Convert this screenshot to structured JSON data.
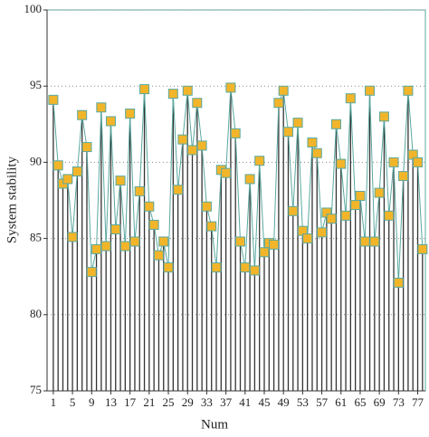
{
  "chart_data": {
    "type": "stem",
    "x_label": "Num",
    "y_label": "System stability",
    "x": [
      1,
      2,
      3,
      4,
      5,
      6,
      7,
      8,
      9,
      10,
      11,
      12,
      13,
      14,
      15,
      16,
      17,
      18,
      19,
      20,
      21,
      22,
      23,
      24,
      25,
      26,
      27,
      28,
      29,
      30,
      31,
      32,
      33,
      34,
      35,
      36,
      37,
      38,
      39,
      40,
      41,
      42,
      43,
      44,
      45,
      46,
      47,
      48,
      49,
      50,
      51,
      52,
      53,
      54,
      55,
      56,
      57,
      58,
      59,
      60,
      61,
      62,
      63,
      64,
      65,
      66,
      67,
      68,
      69,
      70,
      71,
      72,
      73,
      74,
      75,
      76,
      77,
      78
    ],
    "values": [
      94.1,
      89.8,
      88.6,
      88.9,
      85.1,
      89.4,
      93.1,
      91.0,
      82.8,
      84.3,
      93.6,
      84.5,
      92.7,
      85.6,
      88.8,
      84.5,
      93.2,
      84.8,
      88.1,
      94.8,
      87.1,
      85.9,
      83.9,
      84.8,
      83.1,
      94.5,
      88.2,
      91.5,
      94.7,
      90.8,
      93.9,
      91.1,
      87.1,
      85.8,
      83.1,
      89.5,
      89.3,
      94.9,
      91.9,
      84.8,
      83.1,
      88.9,
      82.9,
      90.1,
      84.1,
      84.7,
      84.6,
      93.9,
      94.7,
      92.0,
      86.8,
      92.6,
      85.5,
      85.0,
      91.3,
      90.6,
      85.4,
      86.7,
      86.3,
      92.5,
      89.9,
      86.5,
      94.2,
      87.2,
      87.8,
      84.8,
      94.7,
      84.8,
      88.0,
      93.0,
      86.5,
      90.0,
      82.1,
      89.1,
      94.7,
      90.5,
      90.0,
      84.3
    ],
    "line_color": "#5aa8a0",
    "marker_color": "#f2b52a",
    "stem_color": "#333333",
    "xlim": [
      -0.3,
      78.6
    ],
    "xticks": [
      1,
      5,
      9,
      13,
      17,
      21,
      25,
      29,
      33,
      37,
      41,
      45,
      49,
      53,
      57,
      61,
      65,
      69,
      73,
      77
    ],
    "ylim": [
      75,
      100
    ],
    "yticks": [
      75,
      80,
      85,
      90,
      95,
      100
    ],
    "grid": true
  }
}
